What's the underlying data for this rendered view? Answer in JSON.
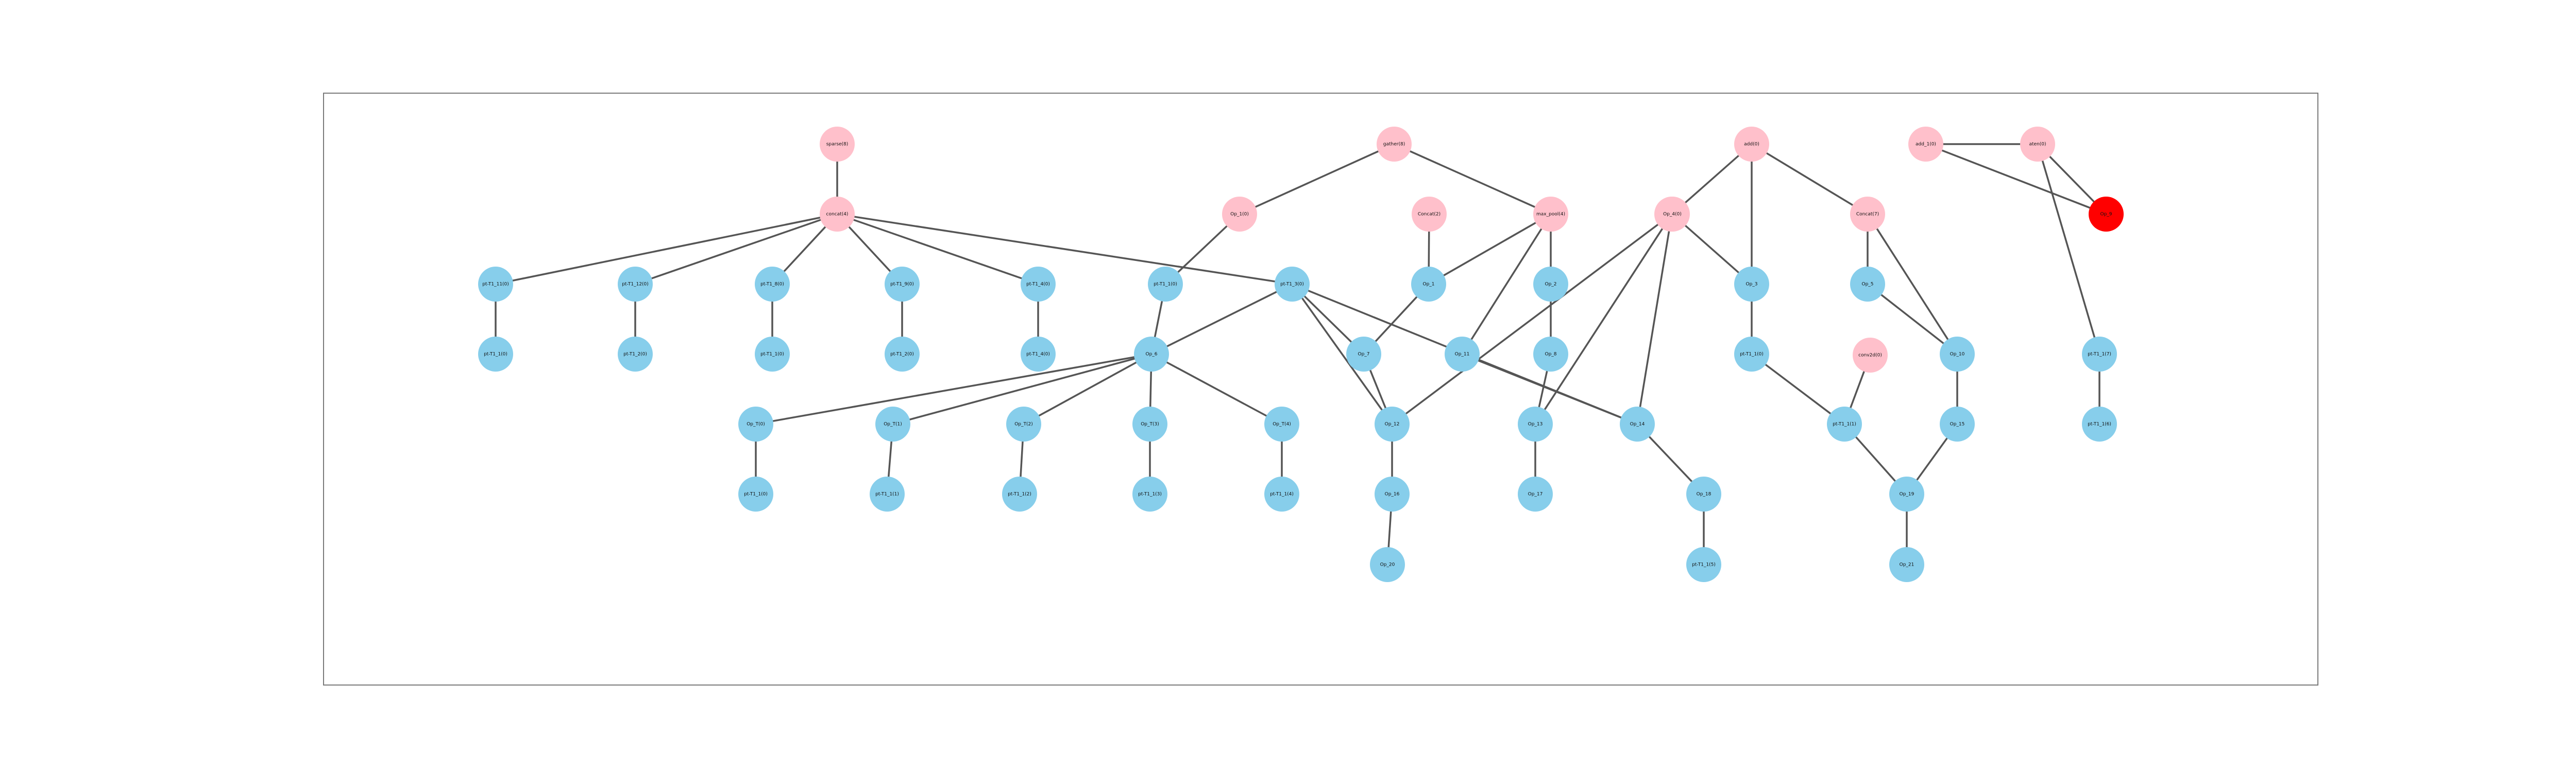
{
  "diagram": {
    "type": "tree-graph",
    "colors": {
      "data_node": "#87ceeb",
      "operation_node": "#ffc0cb",
      "highlight_node": "#ff0000",
      "edge": "#555555",
      "frame": "#7a7a7a",
      "label": "#111111"
    },
    "nodes": [
      {
        "id": "n1",
        "label": "sparse(8)",
        "kind": "operation"
      },
      {
        "id": "n2",
        "label": "concat(4)",
        "kind": "operation"
      },
      {
        "id": "n3",
        "label": "Op_1(0)",
        "kind": "operation"
      },
      {
        "id": "n4",
        "label": "gather(8)",
        "kind": "operation"
      },
      {
        "id": "n5",
        "label": "Concat(2)",
        "kind": "operation"
      },
      {
        "id": "n6",
        "label": "max_pool(4)",
        "kind": "operation"
      },
      {
        "id": "n7",
        "label": "Seq(8)",
        "kind": "operation"
      },
      {
        "id": "n8",
        "label": "add(0)",
        "kind": "operation"
      },
      {
        "id": "n9",
        "label": "Concat(7)",
        "kind": "operation"
      },
      {
        "id": "n10",
        "label": "Op_4(0)",
        "kind": "operation"
      },
      {
        "id": "n11",
        "label": "conv2d(0)",
        "kind": "operation"
      },
      {
        "id": "n12",
        "label": "add_1(0)",
        "kind": "operation"
      },
      {
        "id": "n13",
        "label": "aten(0)",
        "kind": "operation"
      },
      {
        "id": "n14",
        "label": "Op_9",
        "kind": "highlight"
      },
      {
        "id": "n15",
        "label": "pt-T1_11(0)",
        "kind": "data"
      },
      {
        "id": "n16",
        "label": "pt-T1_12(0)",
        "kind": "data"
      },
      {
        "id": "n17",
        "label": "pt-T1_8(0)",
        "kind": "data"
      },
      {
        "id": "n18",
        "label": "pt-T1_9(0)",
        "kind": "data"
      },
      {
        "id": "n19",
        "label": "pt-T1_4(0)",
        "kind": "data"
      },
      {
        "id": "n20",
        "label": "pt-T1_1(0)",
        "kind": "data"
      },
      {
        "id": "n21",
        "label": "pt-T1_3(0)",
        "kind": "data"
      },
      {
        "id": "n22",
        "label": "Op_1",
        "kind": "data"
      },
      {
        "id": "n23",
        "label": "Op_2",
        "kind": "data"
      },
      {
        "id": "n24",
        "label": "Op_3",
        "kind": "data"
      },
      {
        "id": "n25",
        "label": "Op_5",
        "kind": "data"
      },
      {
        "id": "n26",
        "label": "pt-T1_1(0)",
        "kind": "data"
      },
      {
        "id": "n27",
        "label": "pt-T1_2(0)",
        "kind": "data"
      },
      {
        "id": "n28",
        "label": "pt-T1_1(0)",
        "kind": "data"
      },
      {
        "id": "n29",
        "label": "pt-T1_2(0)",
        "kind": "data"
      },
      {
        "id": "n30",
        "label": "pt-T1_4(0)",
        "kind": "data"
      },
      {
        "id": "n31",
        "label": "Op_6",
        "kind": "data"
      },
      {
        "id": "n32",
        "label": "Op_7",
        "kind": "data"
      },
      {
        "id": "n33",
        "label": "Op_8",
        "kind": "data"
      },
      {
        "id": "n34",
        "label": "pt-T1_1(0)",
        "kind": "data"
      },
      {
        "id": "n35",
        "label": "Op_10",
        "kind": "data"
      },
      {
        "id": "n36",
        "label": "Op_11",
        "kind": "data"
      },
      {
        "id": "n37",
        "label": "Op_T(0)",
        "kind": "data"
      },
      {
        "id": "n38",
        "label": "Op_T(1)",
        "kind": "data"
      },
      {
        "id": "n39",
        "label": "Op_T(2)",
        "kind": "data"
      },
      {
        "id": "n40",
        "label": "Op_T(3)",
        "kind": "data"
      },
      {
        "id": "n41",
        "label": "Op_T(4)",
        "kind": "data"
      },
      {
        "id": "n42",
        "label": "Op_12",
        "kind": "data"
      },
      {
        "id": "n43",
        "label": "Op_13",
        "kind": "data"
      },
      {
        "id": "n44",
        "label": "Op_14",
        "kind": "data"
      },
      {
        "id": "n45",
        "label": "pt-T1_1(1)",
        "kind": "data"
      },
      {
        "id": "n46",
        "label": "Op_15",
        "kind": "data"
      },
      {
        "id": "n47",
        "label": "pt-T1_1(0)",
        "kind": "data"
      },
      {
        "id": "n48",
        "label": "pt-T1_1(1)",
        "kind": "data"
      },
      {
        "id": "n49",
        "label": "pt-T1_1(2)",
        "kind": "data"
      },
      {
        "id": "n50",
        "label": "pt-T1_1(3)",
        "kind": "data"
      },
      {
        "id": "n51",
        "label": "pt-T1_1(4)",
        "kind": "data"
      },
      {
        "id": "n52",
        "label": "Op_16",
        "kind": "data"
      },
      {
        "id": "n53",
        "label": "Op_17",
        "kind": "data"
      },
      {
        "id": "n54",
        "label": "Op_18",
        "kind": "data"
      },
      {
        "id": "n55",
        "label": "Op_19",
        "kind": "data"
      },
      {
        "id": "n56",
        "label": "Op_20",
        "kind": "data"
      },
      {
        "id": "n57",
        "label": "pt-T1_1(5)",
        "kind": "data"
      },
      {
        "id": "n58",
        "label": "pt-T1_1(6)",
        "kind": "data"
      },
      {
        "id": "n59",
        "label": "Op_21",
        "kind": "data"
      },
      {
        "id": "n60",
        "label": "pt-T1_1(7)",
        "kind": "data"
      }
    ],
    "edges": [
      [
        "n1",
        "n2"
      ],
      [
        "n2",
        "n15"
      ],
      [
        "n2",
        "n16"
      ],
      [
        "n2",
        "n17"
      ],
      [
        "n2",
        "n18"
      ],
      [
        "n2",
        "n19"
      ],
      [
        "n2",
        "n21"
      ],
      [
        "n15",
        "n26"
      ],
      [
        "n16",
        "n27"
      ],
      [
        "n17",
        "n28"
      ],
      [
        "n18",
        "n29"
      ],
      [
        "n19",
        "n30"
      ],
      [
        "n4",
        "n3"
      ],
      [
        "n4",
        "n6"
      ],
      [
        "n3",
        "n20"
      ],
      [
        "n20",
        "n31"
      ],
      [
        "n21",
        "n31"
      ],
      [
        "n21",
        "n32"
      ],
      [
        "n21",
        "n44"
      ],
      [
        "n21",
        "n42"
      ],
      [
        "n31",
        "n37"
      ],
      [
        "n31",
        "n38"
      ],
      [
        "n31",
        "n39"
      ],
      [
        "n31",
        "n40"
      ],
      [
        "n31",
        "n41"
      ],
      [
        "n37",
        "n47"
      ],
      [
        "n38",
        "n48"
      ],
      [
        "n39",
        "n49"
      ],
      [
        "n40",
        "n50"
      ],
      [
        "n41",
        "n51"
      ],
      [
        "n5",
        "n22"
      ],
      [
        "n22",
        "n32"
      ],
      [
        "n32",
        "n42"
      ],
      [
        "n6",
        "n22"
      ],
      [
        "n6",
        "n23"
      ],
      [
        "n6",
        "n36"
      ],
      [
        "n23",
        "n33"
      ],
      [
        "n33",
        "n43"
      ],
      [
        "n43",
        "n53"
      ],
      [
        "n7",
        "n42"
      ],
      [
        "n7",
        "n43"
      ],
      [
        "n7",
        "n44"
      ],
      [
        "n42",
        "n52"
      ],
      [
        "n52",
        "n56"
      ],
      [
        "n36",
        "n44"
      ],
      [
        "n44",
        "n54"
      ],
      [
        "n54",
        "n57"
      ],
      [
        "n8",
        "n9"
      ],
      [
        "n8",
        "n24"
      ],
      [
        "n8",
        "n10"
      ],
      [
        "n10",
        "n24"
      ],
      [
        "n24",
        "n34"
      ],
      [
        "n34",
        "n45"
      ],
      [
        "n9",
        "n25"
      ],
      [
        "n9",
        "n35"
      ],
      [
        "n25",
        "n35"
      ],
      [
        "n35",
        "n46"
      ],
      [
        "n45",
        "n55"
      ],
      [
        "n46",
        "n55"
      ],
      [
        "n11",
        "n45"
      ],
      [
        "n55",
        "n59"
      ],
      [
        "n12",
        "n13"
      ],
      [
        "n13",
        "n14"
      ],
      [
        "n12",
        "n14"
      ],
      [
        "n13",
        "n60"
      ],
      [
        "n60",
        "n58"
      ]
    ]
  }
}
